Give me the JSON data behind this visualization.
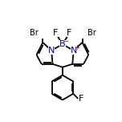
{
  "bg_color": "#ffffff",
  "bond_color": "#000000",
  "bond_width": 1.3,
  "atom_colors": {
    "Br": "#000000",
    "F": "#000000",
    "N": "#0000bb",
    "B": "#0000bb",
    "charge_plus": "#cc0000",
    "charge_minus": "#cc0000"
  },
  "font_size_atom": 7.5
}
